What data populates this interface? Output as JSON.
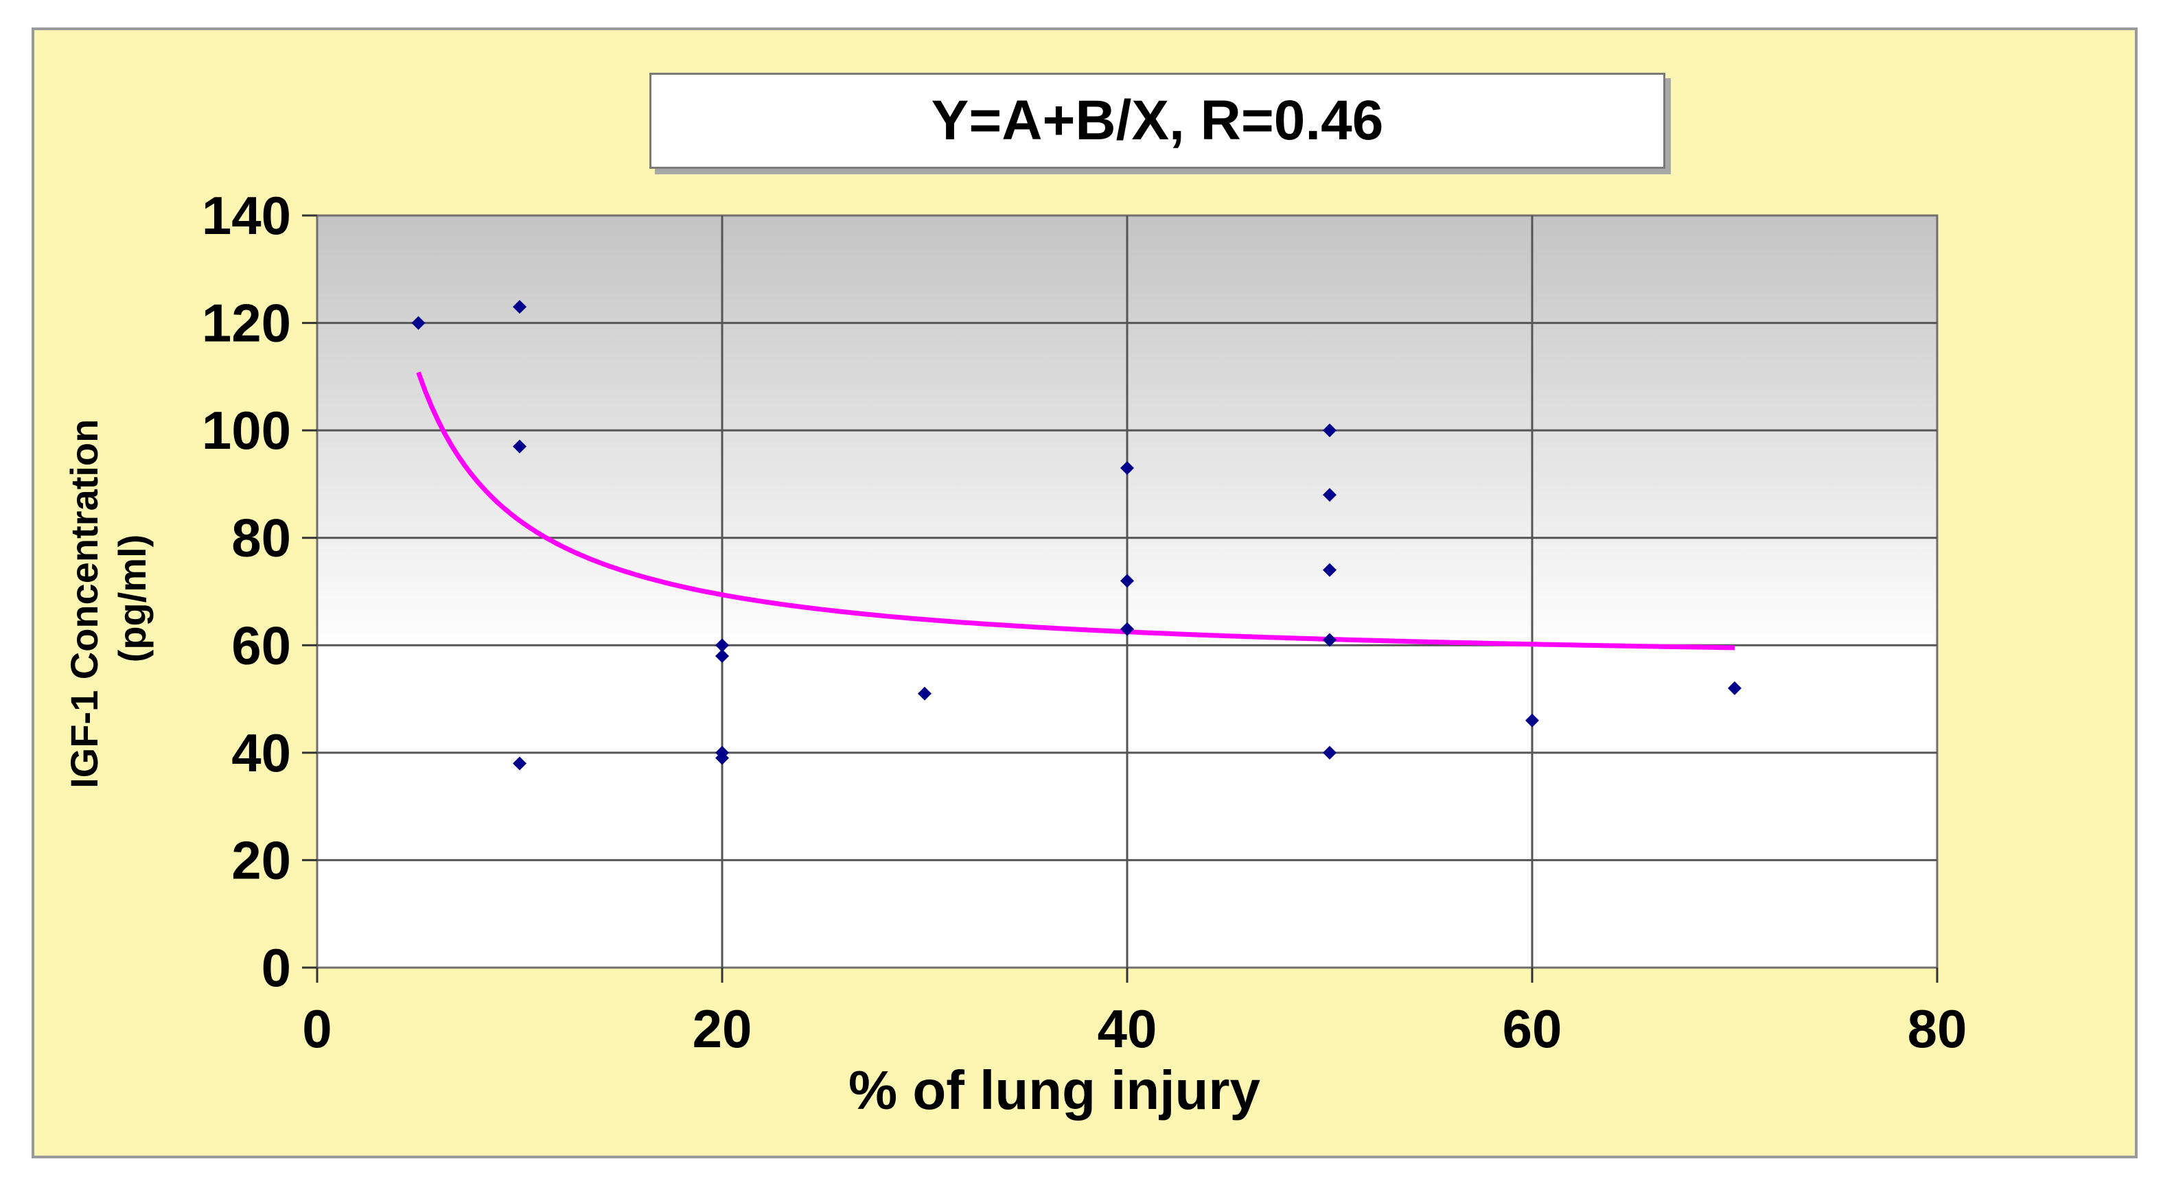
{
  "chart_data": {
    "type": "scatter",
    "title": "Y=A+B/X, R=0.46",
    "xlabel": "% of lung injury",
    "ylabel_lines": [
      "IGF-1 Concentration",
      "(pg/ml)"
    ],
    "xlim": [
      0,
      80
    ],
    "ylim": [
      0,
      140
    ],
    "xticks": [
      0,
      20,
      40,
      60,
      80
    ],
    "yticks": [
      0,
      20,
      40,
      60,
      80,
      100,
      120,
      140
    ],
    "grid": true,
    "legend": "none",
    "points": [
      {
        "x": 5,
        "y": 120
      },
      {
        "x": 10,
        "y": 123
      },
      {
        "x": 10,
        "y": 97
      },
      {
        "x": 10,
        "y": 38
      },
      {
        "x": 20,
        "y": 60
      },
      {
        "x": 20,
        "y": 58
      },
      {
        "x": 20,
        "y": 40
      },
      {
        "x": 20,
        "y": 39
      },
      {
        "x": 30,
        "y": 51
      },
      {
        "x": 40,
        "y": 93
      },
      {
        "x": 40,
        "y": 72
      },
      {
        "x": 40,
        "y": 63
      },
      {
        "x": 50,
        "y": 100
      },
      {
        "x": 50,
        "y": 88
      },
      {
        "x": 50,
        "y": 74
      },
      {
        "x": 50,
        "y": 61
      },
      {
        "x": 50,
        "y": 40
      },
      {
        "x": 60,
        "y": 46
      },
      {
        "x": 70,
        "y": 52
      }
    ],
    "fit": {
      "model": "Y=A+B/X",
      "A": 55.6,
      "B": 276,
      "x_range": [
        5,
        70
      ]
    },
    "colors": {
      "point": "#00008b",
      "fit": "#ff00ff",
      "background": "#fdf6b3",
      "grid": "#555555"
    }
  }
}
